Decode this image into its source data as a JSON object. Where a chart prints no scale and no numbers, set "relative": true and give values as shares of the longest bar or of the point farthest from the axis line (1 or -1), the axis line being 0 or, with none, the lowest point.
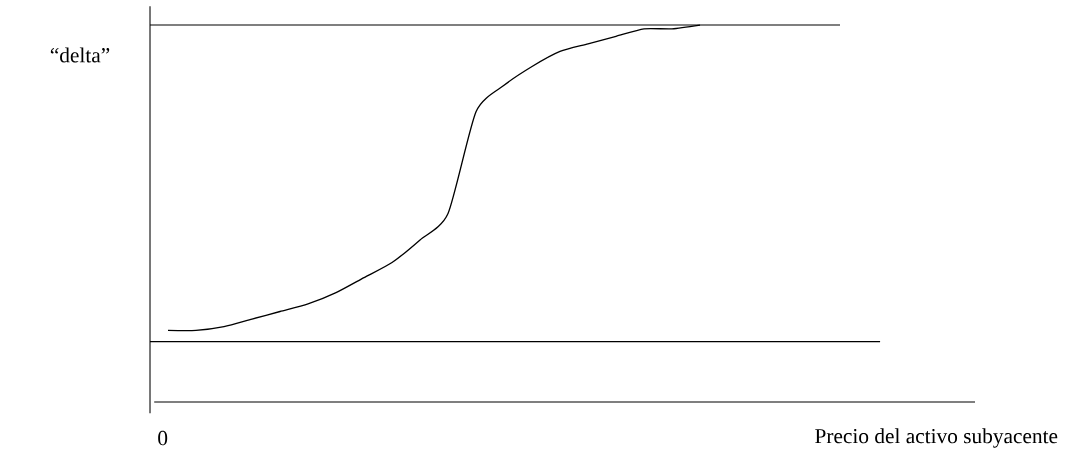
{
  "chart_data": {
    "type": "line",
    "relative": true,
    "ylabel": "“delta”",
    "xlabel": "Precio del activo subyacente",
    "annotations": [
      "0"
    ],
    "categories": [
      null,
      null,
      null,
      null,
      null,
      null,
      null,
      null,
      null,
      null,
      null,
      null,
      null,
      null,
      null,
      null,
      null,
      null,
      null,
      null
    ],
    "series": [
      {
        "color": "#000000",
        "values": [
          0.19,
          0.19,
          0.2,
          0.22,
          0.24,
          0.26,
          0.29,
          0.33,
          0.37,
          0.43,
          0.5,
          0.77,
          0.84,
          0.89,
          0.93,
          0.95,
          0.97,
          0.99,
          0.99,
          1.0
        ]
      }
    ],
    "ref_lines": [
      {
        "axis": "y",
        "value": 1
      },
      {
        "axis": "y",
        "value": 0.16
      }
    ]
  }
}
